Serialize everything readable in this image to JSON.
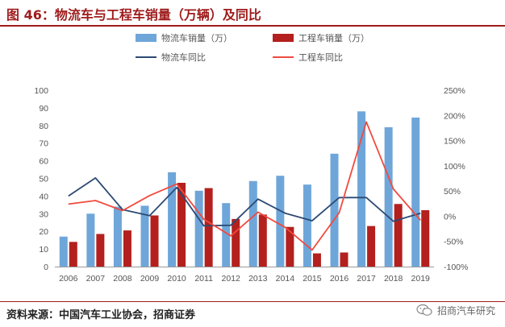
{
  "header": {
    "title": "图 46：物流车与工程车销量（万辆）及同比"
  },
  "source": "资料来源：中国汽车工业协会，招商证券",
  "watermark": {
    "text": "招商汽车研究",
    "icon": "wechat-icon"
  },
  "colors": {
    "blue_bar": "#6fa6d9",
    "red_bar": "#b3201e",
    "blue_line": "#2c4a73",
    "red_line": "#f04a3e",
    "title": "#9e1b1b"
  },
  "chart_data": {
    "type": "bar",
    "categories": [
      "2006",
      "2007",
      "2008",
      "2009",
      "2010",
      "2011",
      "2012",
      "2013",
      "2014",
      "2015",
      "2016",
      "2017",
      "2018",
      "2019"
    ],
    "left_axis": {
      "ylim": [
        0,
        100
      ],
      "ticks": [
        0,
        10,
        20,
        30,
        40,
        50,
        60,
        70,
        80,
        90,
        100
      ]
    },
    "right_axis": {
      "ylim": [
        -100,
        250
      ],
      "ticks": [
        "-100%",
        "-50%",
        "0%",
        "50%",
        "100%",
        "150%",
        "200%",
        "250%"
      ]
    },
    "series": [
      {
        "name": "物流车销量（万）",
        "type": "bar",
        "axis": "left",
        "values": [
          17,
          30,
          34,
          34.5,
          53.5,
          43,
          36,
          48.5,
          51.5,
          46.5,
          64,
          88,
          79,
          84.5
        ]
      },
      {
        "name": "工程车销量（万）",
        "type": "bar",
        "axis": "left",
        "values": [
          14,
          18.5,
          20.5,
          29,
          47.5,
          44.5,
          27,
          29.5,
          22.5,
          7.5,
          8,
          23,
          35.5,
          32
        ]
      },
      {
        "name": "物流车同比",
        "type": "line",
        "axis": "right",
        "values": [
          40,
          76,
          13,
          1,
          57,
          -19,
          -18,
          34,
          6,
          -9,
          37,
          37,
          -10,
          6
        ]
      },
      {
        "name": "工程车同比",
        "type": "line",
        "axis": "right",
        "values": [
          24,
          31,
          11,
          41,
          64,
          -6,
          -39,
          8,
          -22,
          -67,
          7,
          187,
          54,
          -8
        ]
      }
    ],
    "legend_position": "top",
    "grid": false
  }
}
